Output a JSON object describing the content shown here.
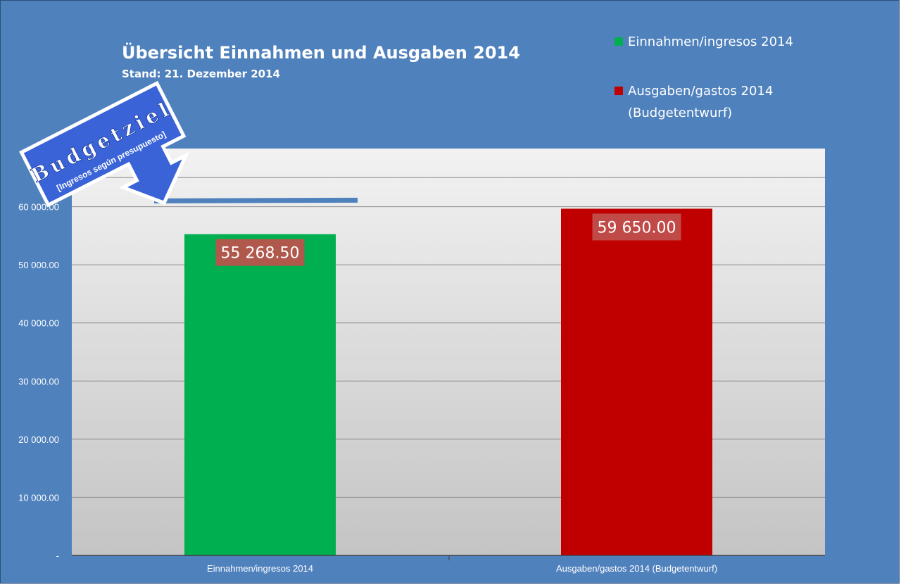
{
  "chart_data": {
    "type": "bar",
    "title": "Übersicht Einnahmen und Ausgaben 2014",
    "subtitle": "Stand: 21. Dezember 2014",
    "xlabel": "",
    "ylabel": "",
    "ylim": [
      0,
      70000
    ],
    "yticks": [
      0,
      10000,
      20000,
      30000,
      40000,
      50000,
      60000
    ],
    "ytick_labels": [
      "-",
      "10 000.00",
      "20 000.00",
      "30 000.00",
      "40 000.00",
      "50 000.00",
      "60 000.00"
    ],
    "grid": true,
    "legend_position": "top-right",
    "categories": [
      "Einnahmen/ingresos 2014",
      "Ausgaben/gastos 2014 (Budgetentwurf)"
    ],
    "series": [
      {
        "name": "Einnahmen/ingresos 2014",
        "category_index": 0,
        "value": 55268.5,
        "label": "55 268.50",
        "color": "#00b050",
        "label_bg": "#c0504d"
      },
      {
        "name": "Ausgaben/gastos 2014 (Budgetentwurf)",
        "category_index": 1,
        "value": 59650.0,
        "label": "59 650.00",
        "color": "#c00000",
        "label_bg": "#c0504d"
      }
    ],
    "legend": [
      {
        "lines": [
          "Einnahmen/ingresos 2014"
        ],
        "color": "#00b050"
      },
      {
        "lines": [
          "Ausgaben/gastos 2014",
          "(Budgetentwurf)"
        ],
        "color": "#c00000"
      }
    ],
    "target_line": {
      "value": 61000,
      "color": "#4f81bd"
    },
    "annotation": {
      "line1": "Budgetziel",
      "line2": "[Ingresos según presupuesto]",
      "fill": "#3a63d8",
      "text_color": "#ffffff"
    },
    "colors": {
      "background": "#4f81bd",
      "plot_top": "#f2f2f2",
      "plot_bottom": "#c4c4c4",
      "grid": "#8c8c8c"
    }
  }
}
